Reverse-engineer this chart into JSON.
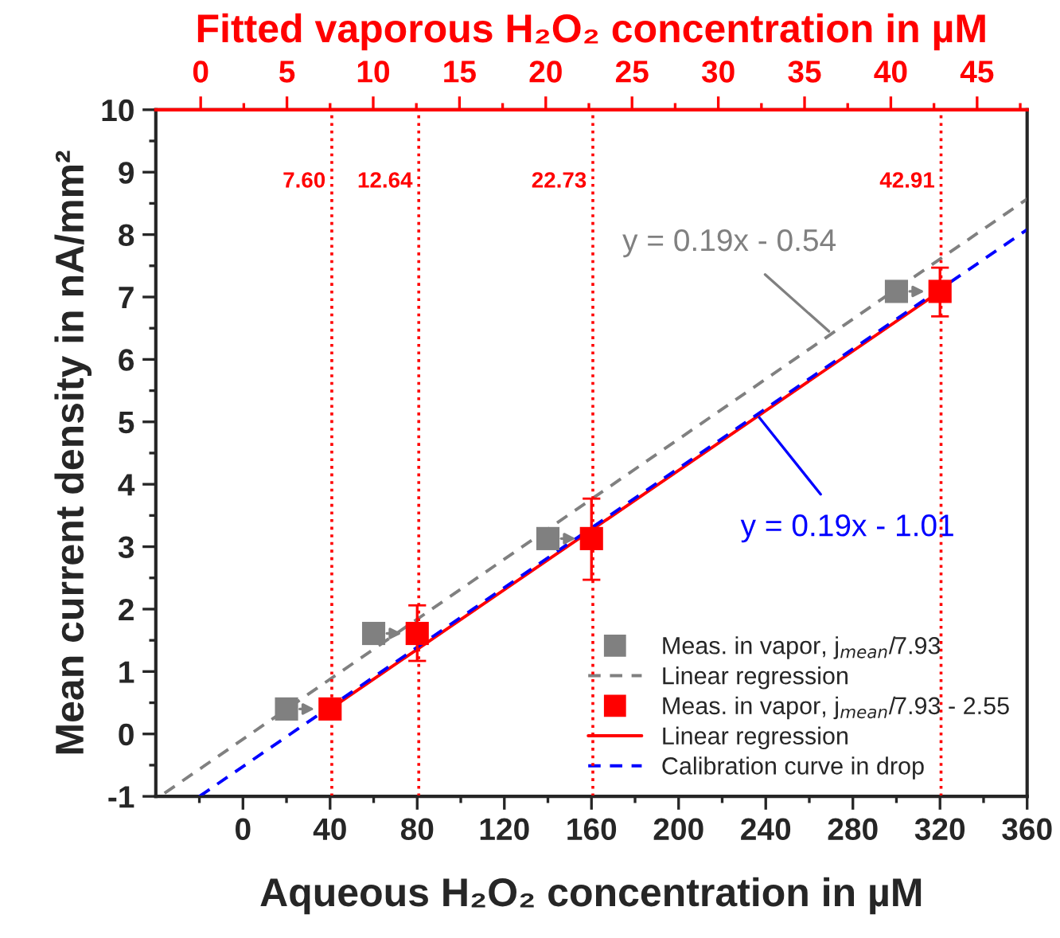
{
  "chart_data": {
    "type": "scatter",
    "xlabel": "Aqueous H₂O₂ concentration in µM",
    "ylabel": "Mean current density in nA/mm²",
    "x2label": "Fitted vaporous H₂O₂ concentration in µM",
    "xlim": [
      -40,
      360
    ],
    "xticks": [
      0,
      40,
      80,
      120,
      160,
      200,
      240,
      280,
      320,
      360
    ],
    "ylim": [
      -1,
      10
    ],
    "yticks": [
      -1,
      0,
      1,
      2,
      3,
      4,
      5,
      6,
      7,
      8,
      9,
      10
    ],
    "x2lim": [
      -2.6,
      47.9
    ],
    "x2ticks": [
      0,
      5,
      10,
      15,
      20,
      25,
      30,
      35,
      40,
      45
    ],
    "series": [
      {
        "name": "Meas. in vapor, j$_{mean}$/7.93",
        "color": "#808080",
        "marker": "square",
        "x": [
          20,
          60,
          140,
          300
        ],
        "values": [
          0.4,
          1.61,
          3.13,
          7.09
        ]
      },
      {
        "name": "Linear regression",
        "type": "line",
        "color": "#808080",
        "line_style": "dashed",
        "x": [
          -36,
          360
        ],
        "values": [
          -0.95,
          8.57
        ]
      },
      {
        "name": "Meas. in vapor, j$_{mean}$/7.93 - 2.55",
        "color": "#ff0000",
        "marker": "square",
        "x": [
          40,
          80,
          160,
          320
        ],
        "values": [
          0.4,
          1.61,
          3.13,
          7.09
        ],
        "errors": [
          null,
          [
            1.17,
            2.06
          ],
          [
            2.47,
            3.77
          ],
          [
            6.69,
            7.47
          ]
        ]
      },
      {
        "name": "Linear regression",
        "type": "line",
        "color": "#ff0000",
        "line_style": "solid",
        "x": [
          40,
          320
        ],
        "values": [
          0.4,
          7.09
        ]
      },
      {
        "name": "Calibration curve in drop",
        "type": "line",
        "color": "#0000ff",
        "line_style": "dashed",
        "x": [
          -20,
          360
        ],
        "values": [
          -1.0,
          8.08
        ]
      }
    ],
    "ref_lines": [
      {
        "axis": "x2",
        "value": 7.6,
        "label": "7.60",
        "color": "#ff0000",
        "line_style": "dotted"
      },
      {
        "axis": "x2",
        "value": 12.64,
        "label": "12.64",
        "color": "#ff0000",
        "line_style": "dotted"
      },
      {
        "axis": "x2",
        "value": 22.73,
        "label": "22.73",
        "color": "#ff0000",
        "line_style": "dotted"
      },
      {
        "axis": "x2",
        "value": 42.91,
        "label": "42.91",
        "color": "#ff0000",
        "line_style": "dotted"
      }
    ],
    "annotations": [
      {
        "text": "y = 0.19x - 0.54",
        "x": 269,
        "y": 6.45
      },
      {
        "text": "y = 0.19x - 1.01",
        "x": 237,
        "y": 5.07
      }
    ],
    "legend": "bottom right",
    "grid": false
  }
}
